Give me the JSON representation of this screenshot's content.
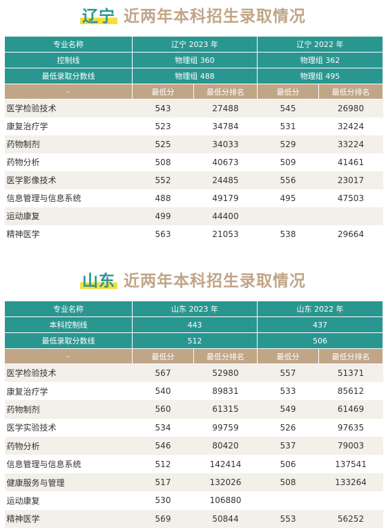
{
  "liaoning": {
    "title_province": "辽宁",
    "title_rest": "近两年本科招生录取情况",
    "header": {
      "major_label": "专业名称",
      "year1": "辽宁 2023 年",
      "year2": "辽宁 2022 年",
      "control_label": "控制线",
      "control1": "物理组 360",
      "control2": "物理组 362",
      "minline_label": "最低录取分数线",
      "minline1": "物理组 488",
      "minline2": "物理组 495",
      "dash": "–",
      "min_score": "最低分",
      "min_rank": "最低分排名"
    },
    "rows": [
      {
        "name": "医学检验技术",
        "s1": "543",
        "r1": "27488",
        "s2": "545",
        "r2": "26980"
      },
      {
        "name": "康复治疗学",
        "s1": "523",
        "r1": "34784",
        "s2": "531",
        "r2": "32424"
      },
      {
        "name": "药物制剂",
        "s1": "525",
        "r1": "34033",
        "s2": "529",
        "r2": "33224"
      },
      {
        "name": "药物分析",
        "s1": "508",
        "r1": "40673",
        "s2": "509",
        "r2": "41461"
      },
      {
        "name": "医学影像技术",
        "s1": "552",
        "r1": "24485",
        "s2": "556",
        "r2": "23017"
      },
      {
        "name": "信息管理与信息系统",
        "s1": "488",
        "r1": "49179",
        "s2": "495",
        "r2": "47503"
      },
      {
        "name": "运动康复",
        "s1": "499",
        "r1": "44400",
        "s2": "",
        "r2": ""
      },
      {
        "name": "精神医学",
        "s1": "563",
        "r1": "21053",
        "s2": "538",
        "r2": "29664"
      }
    ]
  },
  "shandong": {
    "title_province": "山东",
    "title_rest": "近两年本科招生录取情况",
    "header": {
      "major_label": "专业名称",
      "year1": "山东 2023 年",
      "year2": "山东 2022 年",
      "control_label": "本科控制线",
      "control1": "443",
      "control2": "437",
      "minline_label": "最低录取分数线",
      "minline1": "512",
      "minline2": "506",
      "dash": "–",
      "min_score": "最低分",
      "min_rank": "最低分排名"
    },
    "rows": [
      {
        "name": "医学检验技术",
        "s1": "567",
        "r1": "52980",
        "s2": "557",
        "r2": "51371"
      },
      {
        "name": "康复治疗学",
        "s1": "540",
        "r1": "89831",
        "s2": "533",
        "r2": "85612"
      },
      {
        "name": "药物制剂",
        "s1": "560",
        "r1": "61315",
        "s2": "549",
        "r2": "61469"
      },
      {
        "name": "医学实验技术",
        "s1": "534",
        "r1": "99759",
        "s2": "526",
        "r2": "97635"
      },
      {
        "name": "药物分析",
        "s1": "546",
        "r1": "80420",
        "s2": "537",
        "r2": "79003"
      },
      {
        "name": "信息管理与信息系统",
        "s1": "512",
        "r1": "142414",
        "s2": "506",
        "r2": "137541"
      },
      {
        "name": "健康服务与管理",
        "s1": "517",
        "r1": "132026",
        "s2": "508",
        "r2": "133264"
      },
      {
        "name": "运动康复",
        "s1": "530",
        "r1": "106880",
        "s2": "",
        "r2": ""
      },
      {
        "name": "精神医学",
        "s1": "569",
        "r1": "50844",
        "s2": "553",
        "r2": "56252"
      }
    ]
  }
}
